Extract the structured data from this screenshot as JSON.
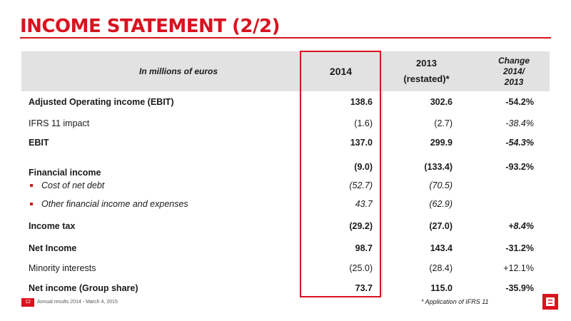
{
  "title": "INCOME STATEMENT (2/2)",
  "header": {
    "label": "In millions of euros",
    "col_2014": "2014",
    "col_2013_year": "2013",
    "col_2013_note": "(restated)*",
    "change_line1": "Change",
    "change_line2": "2014/",
    "change_line3": "2013"
  },
  "rows": [
    {
      "label": "Adjusted Operating income (EBIT)",
      "v2014": "138.6",
      "v2013": "302.6",
      "change": "-54.2%"
    },
    {
      "label": "IFRS 11 impact",
      "v2014": "(1.6)",
      "v2013": "(2.7)",
      "change": "-38.4%"
    },
    {
      "label": "EBIT",
      "v2014": "137.0",
      "v2013": "299.9",
      "change": "-54.3%"
    },
    {
      "label": "Financial income",
      "v2014": "(9.0)",
      "v2013": "(133.4)",
      "change": "-93.2%"
    },
    {
      "label": "Cost of net debt",
      "v2014": "(52.7)",
      "v2013": "(70.5)",
      "change": ""
    },
    {
      "label": "Other financial income and expenses",
      "v2014": "43.7",
      "v2013": "(62.9)",
      "change": ""
    },
    {
      "label": "Income tax",
      "v2014": "(29.2)",
      "v2013": "(27.0)",
      "change": "+8.4%"
    },
    {
      "label": "Net Income",
      "v2014": "98.7",
      "v2013": "143.4",
      "change": "-31.2%"
    },
    {
      "label": "Minority interests",
      "v2014": "(25.0)",
      "v2013": "(28.4)",
      "change": "+12.1%"
    },
    {
      "label": "Net income (Group share)",
      "v2014": "73.7",
      "v2013": "115.0",
      "change": "-35.9%"
    }
  ],
  "footer": {
    "page_number": "12",
    "text": "Annual results 2014 - March 4, 2015",
    "footnote": "* Application of IFRS 11"
  },
  "colors": {
    "accent": "#d8131f",
    "header_bg": "#e2e2e2"
  }
}
